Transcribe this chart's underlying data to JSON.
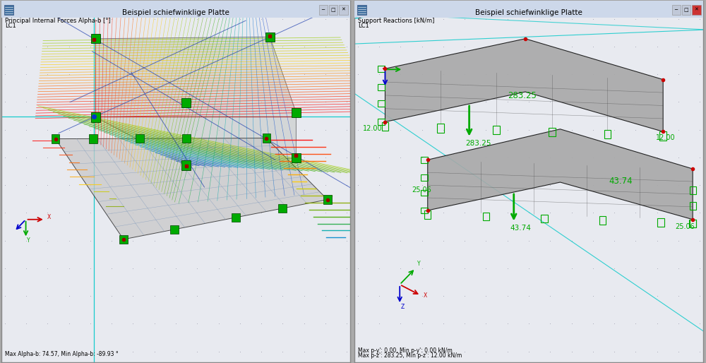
{
  "title": "Beispiel schiefwinklige Platte",
  "left_label1": "Principal Internal Forces Alpha-b [°]",
  "left_label2": "LC1",
  "right_label1": "Support Reactions [kN/m]",
  "right_label2": "LC1",
  "left_bottom_text": "Max Alpha-b: 74.57, Min Alpha-b: -89.93 °",
  "right_bottom_text1": "Max p-y': 0.00, Min p-y': 0.00 kN/m",
  "right_bottom_text2": "Max p-z': 283.25, Min p-z': 12.00 kN/m",
  "bg_color": "#e8eaf0",
  "titlebar_color": "#d0d8e8",
  "green_color": "#00aa00",
  "red_color": "#cc0000",
  "blue_color": "#0000cc",
  "cyan_color": "#00c8c8",
  "value_283": "283.25",
  "value_12": "12.00",
  "value_25": "25.06",
  "value_43": "43.74",
  "plate_fill": "#b8b8b8",
  "plate_edge": "#1a1a1a",
  "dot_color": "#a0a0b0"
}
